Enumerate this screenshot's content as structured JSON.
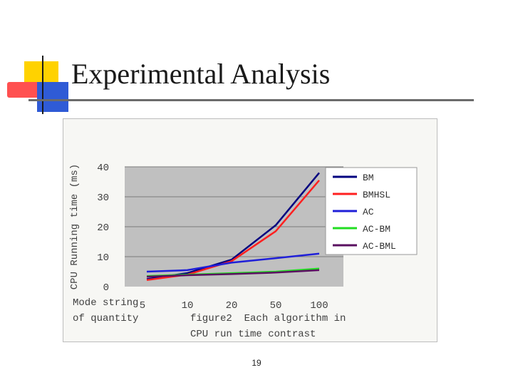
{
  "slide": {
    "title": "Experimental Analysis",
    "page_number": "19"
  },
  "colors": {
    "plot_background": "#c0c0c0",
    "accent_yellow": "#ffd200",
    "accent_red": "#ff4d4d",
    "accent_blue": "#2f5bd6"
  },
  "chart_data": {
    "type": "line",
    "ylabel": "CPU Running time (ms)",
    "xlabel": "Mode string of quantity",
    "caption_line1": "figure2  Each algorithm in",
    "caption_line2": "CPU run time contrast",
    "categories": [
      "5",
      "10",
      "20",
      "50",
      "100"
    ],
    "ylim": [
      0,
      40
    ],
    "yticks": [
      "0",
      "10",
      "20",
      "30",
      "40"
    ],
    "grid": true,
    "legend_position": "top-right",
    "series": [
      {
        "name": "BM",
        "color": "#00007f",
        "values": [
          2.5,
          4.5,
          9,
          20.5,
          38
        ]
      },
      {
        "name": "BMHSL",
        "color": "#ff2020",
        "values": [
          2.2,
          4,
          8.5,
          18.5,
          35.5
        ]
      },
      {
        "name": "AC",
        "color": "#1f1fd8",
        "values": [
          5,
          5.5,
          8,
          9.5,
          11
        ]
      },
      {
        "name": "AC-BM",
        "color": "#22dd22",
        "values": [
          3.5,
          4,
          4.5,
          5,
          6
        ]
      },
      {
        "name": "AC-BML",
        "color": "#5a1060",
        "values": [
          3.3,
          3.8,
          4.2,
          4.7,
          5.5
        ]
      }
    ]
  }
}
